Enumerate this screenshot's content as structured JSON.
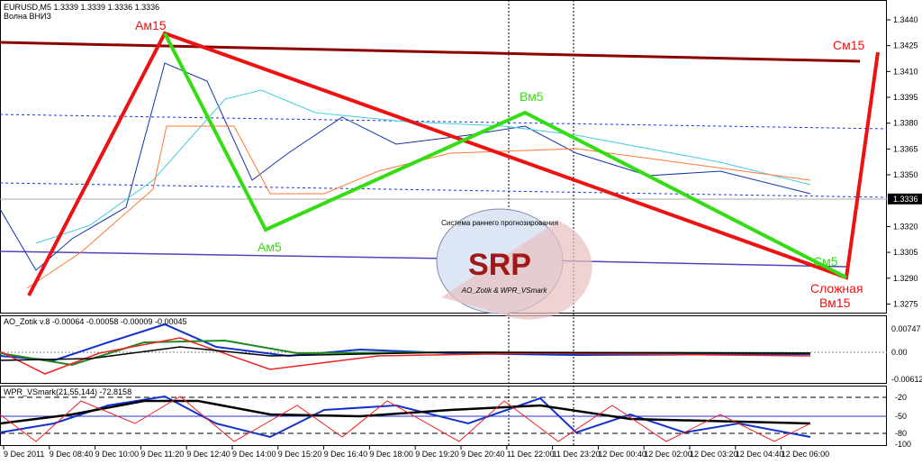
{
  "header": {
    "symbol": "EURUSD,M5  1.3339 1.3339 1.3336 1.3336",
    "status": "Волна ВНИЗ"
  },
  "price_axis": {
    "ylim": [
      1.327,
      1.34515
    ],
    "ticks": [
      {
        "value": 1.344,
        "label": "1.3440"
      },
      {
        "value": 1.3425,
        "label": "1.3425"
      },
      {
        "value": 1.341,
        "label": "1.3410"
      },
      {
        "value": 1.3395,
        "label": "1.3395"
      },
      {
        "value": 1.338,
        "label": "1.3380"
      },
      {
        "value": 1.3365,
        "label": "1.3365"
      },
      {
        "value": 1.335,
        "label": "1.3350"
      },
      {
        "value": 1.332,
        "label": "1.3320"
      },
      {
        "value": 1.3305,
        "label": "1.3305"
      },
      {
        "value": 1.329,
        "label": "1.3290"
      },
      {
        "value": 1.3275,
        "label": "1.3275"
      }
    ],
    "current": {
      "value": 1.3336,
      "label": "1.3336"
    }
  },
  "waves": {
    "am15": "Ам15",
    "cm15": "См15",
    "bm5": "Вм5",
    "am5": "Ам5",
    "cm5": "См5",
    "complex": [
      "Сложная",
      "Вм15"
    ]
  },
  "logo": {
    "arc": "Система раннего прогнозирования",
    "name": "SRP",
    "sub": "AO_Zotik & WPR_VSmark"
  },
  "ao_panel": {
    "title": "AO_Zotik v.8 -0.00064 -0.00058 -0.00009 -0.00045",
    "ticks": [
      "0.00747",
      "0.00",
      "-0.00612"
    ]
  },
  "wpr_panel": {
    "title": "WPR_VSmark(21,55,144) -72.8158",
    "ticks": [
      "-20",
      "-50",
      "-80",
      "-100"
    ]
  },
  "time_axis": [
    "9 Dec 2011",
    "9 Dec 08:40",
    "9 Dec 10:00",
    "9 Dec 11:20",
    "9 Dec 12:40",
    "9 Dec 14:00",
    "9 Dec 15:20",
    "9 Dec 16:40",
    "9 Dec 18:00",
    "9 Dec 19:20",
    "9 Dec 20:40",
    "11 Dec 22:00",
    "11 Dec 23:20",
    "12 Dec 00:40",
    "12 Dec 02:00",
    "12 Dec 03:20",
    "12 Dec 04:40",
    "12 Dec 06:00"
  ]
}
